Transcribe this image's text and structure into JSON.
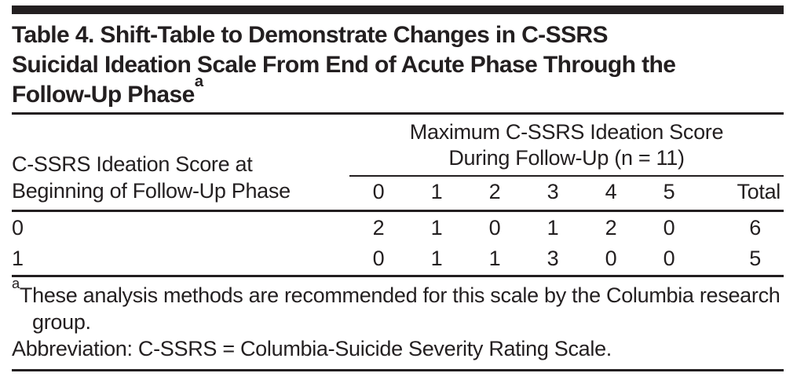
{
  "page": {
    "background_color": "#ffffff",
    "ink_color": "#231f20"
  },
  "title": {
    "lines": [
      "Table 4. Shift-Table to Demonstrate Changes in C-SSRS",
      "Suicidal Ideation Scale From End of Acute Phase Through the",
      "Follow-Up Phase"
    ],
    "marker": "a"
  },
  "table": {
    "stub_header_lines": [
      "C-SSRS Ideation Score at",
      "Beginning of Follow-Up Phase"
    ],
    "spanner_lines": [
      "Maximum C-SSRS Ideation Score",
      "During Follow-Up (n = 11)"
    ],
    "column_headers": [
      "0",
      "1",
      "2",
      "3",
      "4",
      "5",
      "Total"
    ],
    "rows": [
      {
        "label": "0",
        "values": [
          "2",
          "1",
          "0",
          "1",
          "2",
          "0",
          "6"
        ]
      },
      {
        "label": "1",
        "values": [
          "0",
          "1",
          "1",
          "3",
          "0",
          "0",
          "5"
        ]
      }
    ]
  },
  "footnotes": {
    "note_marker": "a",
    "note_text": "These analysis methods are recommended for this scale by the Columbia research group.",
    "abbreviation": "Abbreviation: C-SSRS = Columbia-Suicide Severity Rating Scale."
  }
}
